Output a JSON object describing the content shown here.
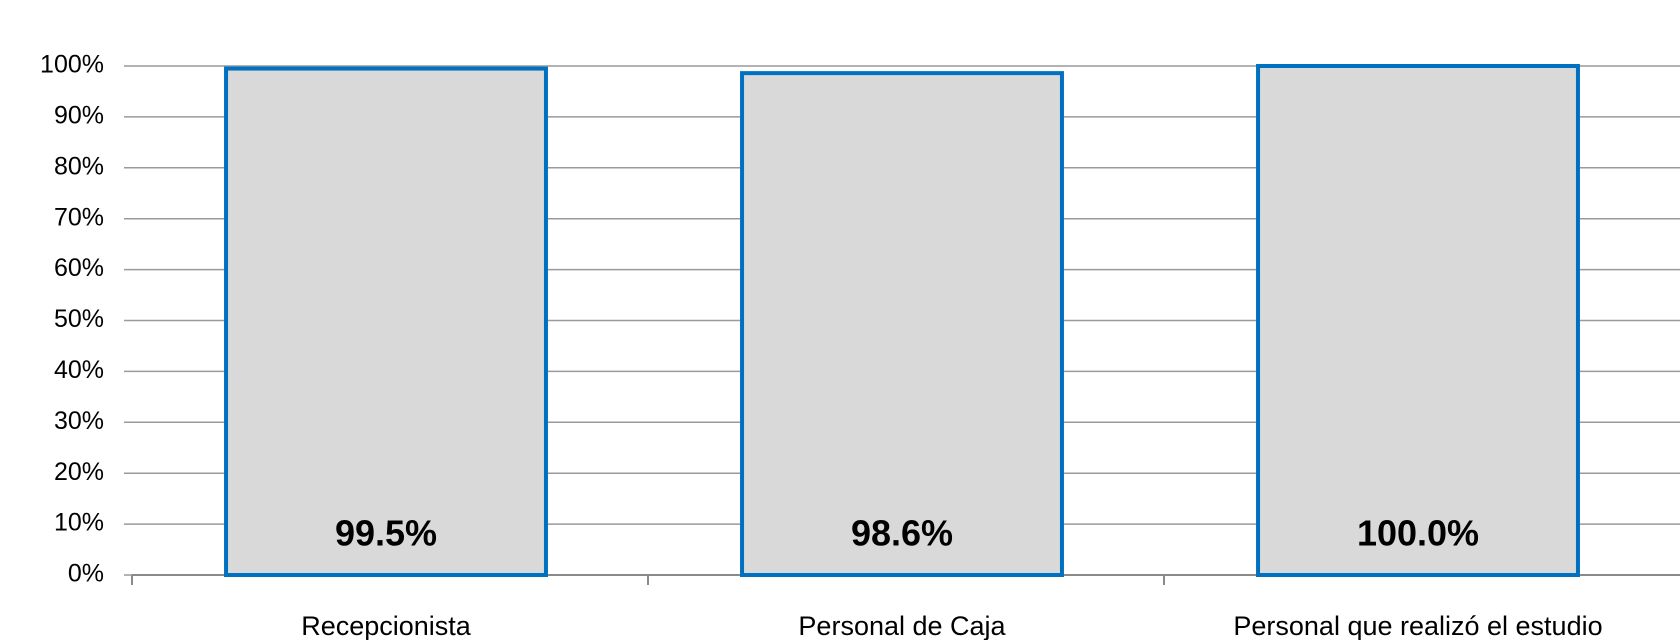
{
  "chart_data": {
    "type": "bar",
    "categories": [
      "Recepcionista",
      "Personal de Caja",
      "Personal que realizó el estudio"
    ],
    "values": [
      99.5,
      98.6,
      100.0
    ],
    "value_labels": [
      "99.5%",
      "98.6%",
      "100.0%"
    ],
    "color": "#d9d9d9",
    "edge_color": "#0070c0",
    "ylim": [
      0,
      100
    ],
    "yticks": [
      {
        "value": 0,
        "label": "0%"
      },
      {
        "value": 10,
        "label": "10%"
      },
      {
        "value": 20,
        "label": "20%"
      },
      {
        "value": 30,
        "label": "30%"
      },
      {
        "value": 40,
        "label": "40%"
      },
      {
        "value": 50,
        "label": "50%"
      },
      {
        "value": 60,
        "label": "60%"
      },
      {
        "value": 70,
        "label": "70%"
      },
      {
        "value": 80,
        "label": "80%"
      },
      {
        "value": 90,
        "label": "90%"
      },
      {
        "value": 100,
        "label": "100%"
      }
    ],
    "grid": true
  }
}
